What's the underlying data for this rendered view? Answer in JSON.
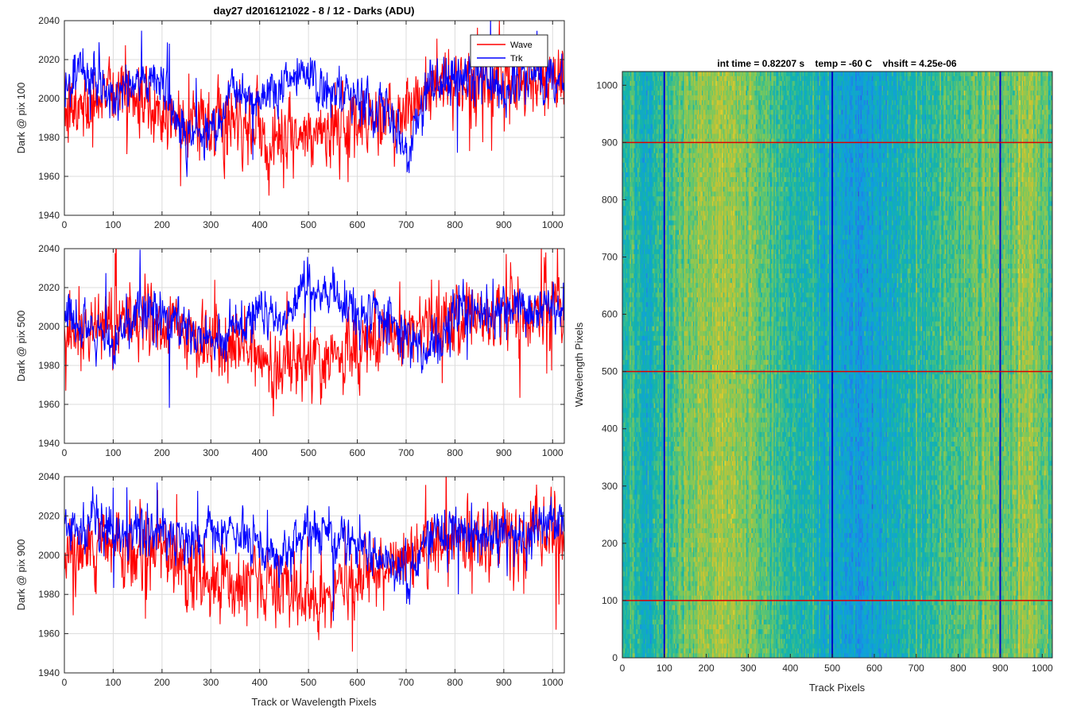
{
  "figure": {
    "title": "day27 d2016121022 - 8 / 12 - Darks (ADU)"
  },
  "chart_data": [
    {
      "type": "line",
      "ylabel": "Dark @ pix 100",
      "xlabel": "",
      "xlim": [
        0,
        1024
      ],
      "ylim": [
        1940,
        2040
      ],
      "xticks": [
        "0",
        "100",
        "200",
        "300",
        "400",
        "500",
        "600",
        "700",
        "800",
        "900",
        "1000"
      ],
      "yticks": [
        "1940",
        "1960",
        "1980",
        "2000",
        "2020",
        "2040"
      ],
      "grid": true,
      "legend": {
        "position": "top-right",
        "entries": [
          "Wave",
          "Trk"
        ]
      },
      "series": [
        {
          "name": "Wave",
          "color": "#ff0000",
          "x": [
            0,
            50,
            100,
            150,
            200,
            250,
            300,
            350,
            400,
            450,
            500,
            550,
            600,
            650,
            700,
            750,
            800,
            850,
            900,
            950,
            1000,
            1024
          ],
          "values": [
            1990,
            1998,
            2008,
            2000,
            1992,
            1990,
            1988,
            1985,
            1982,
            1980,
            1978,
            1984,
            1985,
            1990,
            1993,
            2005,
            2008,
            2007,
            2006,
            2008,
            2010,
            2008
          ]
        },
        {
          "name": "Trk",
          "color": "#0000ff",
          "x": [
            0,
            50,
            100,
            150,
            200,
            250,
            300,
            350,
            400,
            450,
            500,
            550,
            600,
            650,
            700,
            750,
            800,
            850,
            900,
            950,
            1000,
            1024
          ],
          "values": [
            2005,
            2015,
            2000,
            2010,
            2008,
            1980,
            1985,
            2005,
            2000,
            2010,
            2015,
            2000,
            1998,
            1995,
            1975,
            2005,
            2010,
            2010,
            2005,
            2010,
            2012,
            2010
          ]
        }
      ]
    },
    {
      "type": "line",
      "ylabel": "Dark @ pix 500",
      "xlabel": "",
      "xlim": [
        0,
        1024
      ],
      "ylim": [
        1940,
        2040
      ],
      "xticks": [
        "0",
        "100",
        "200",
        "300",
        "400",
        "500",
        "600",
        "700",
        "800",
        "900",
        "1000"
      ],
      "yticks": [
        "1940",
        "1960",
        "1980",
        "2000",
        "2020",
        "2040"
      ],
      "grid": true,
      "series": [
        {
          "name": "Wave",
          "color": "#ff0000",
          "x": [
            0,
            50,
            100,
            150,
            200,
            250,
            300,
            350,
            400,
            450,
            500,
            550,
            600,
            650,
            700,
            750,
            800,
            850,
            900,
            950,
            1000,
            1024
          ],
          "values": [
            1995,
            2000,
            2005,
            2003,
            2000,
            1995,
            1990,
            1988,
            1985,
            1982,
            1978,
            1985,
            1988,
            1993,
            1998,
            2003,
            2005,
            2007,
            2007,
            2008,
            2008,
            2008
          ]
        },
        {
          "name": "Trk",
          "color": "#0000ff",
          "x": [
            0,
            50,
            100,
            150,
            200,
            250,
            300,
            350,
            400,
            450,
            500,
            550,
            600,
            650,
            700,
            750,
            800,
            850,
            900,
            950,
            1000,
            1024
          ],
          "values": [
            2005,
            1995,
            1990,
            2010,
            2005,
            1998,
            1992,
            2000,
            2010,
            2000,
            2025,
            2015,
            2005,
            2008,
            1995,
            1985,
            2010,
            2008,
            2005,
            2008,
            2010,
            2008
          ]
        }
      ]
    },
    {
      "type": "line",
      "ylabel": "Dark @ pix 900",
      "xlabel": "Track or Wavelength Pixels",
      "xlim": [
        0,
        1024
      ],
      "ylim": [
        1940,
        2040
      ],
      "xticks": [
        "0",
        "100",
        "200",
        "300",
        "400",
        "500",
        "600",
        "700",
        "800",
        "900",
        "1000"
      ],
      "yticks": [
        "1940",
        "1960",
        "1980",
        "2000",
        "2020",
        "2040"
      ],
      "grid": true,
      "series": [
        {
          "name": "Wave",
          "color": "#ff0000",
          "x": [
            0,
            50,
            100,
            150,
            200,
            250,
            300,
            350,
            400,
            450,
            500,
            550,
            600,
            650,
            700,
            750,
            800,
            850,
            900,
            950,
            1000,
            1024
          ],
          "values": [
            1995,
            2000,
            2005,
            2005,
            2002,
            1995,
            1990,
            1988,
            1985,
            1982,
            1980,
            1983,
            1985,
            1990,
            1995,
            2003,
            2005,
            2007,
            2008,
            2008,
            2010,
            2008
          ]
        },
        {
          "name": "Trk",
          "color": "#0000ff",
          "x": [
            0,
            50,
            100,
            150,
            200,
            250,
            300,
            350,
            400,
            450,
            500,
            550,
            600,
            650,
            700,
            750,
            800,
            850,
            900,
            950,
            1000,
            1024
          ],
          "values": [
            2010,
            2015,
            2012,
            2012,
            2010,
            2008,
            2010,
            2012,
            2005,
            1998,
            2015,
            2010,
            2005,
            2000,
            1990,
            2008,
            2012,
            2010,
            2010,
            2010,
            2020,
            2018
          ]
        }
      ]
    },
    {
      "type": "heatmap",
      "title": "int time = 0.82207 s    temp = -60 C    vhsift = 4.25e-06",
      "xlabel": "Track Pixels",
      "ylabel": "Wavelength Pixels",
      "xlim": [
        0,
        1024
      ],
      "ylim": [
        0,
        1024
      ],
      "xticks": [
        "0",
        "100",
        "200",
        "300",
        "400",
        "500",
        "600",
        "700",
        "800",
        "900",
        "1000"
      ],
      "yticks": [
        "0",
        "100",
        "200",
        "300",
        "400",
        "500",
        "600",
        "700",
        "800",
        "900",
        "1000"
      ],
      "colormap": "parula",
      "column_profile": {
        "x": [
          0,
          50,
          100,
          150,
          200,
          250,
          300,
          350,
          400,
          450,
          500,
          550,
          600,
          650,
          700,
          750,
          800,
          850,
          900,
          950,
          1000,
          1024
        ],
        "level": [
          0.5,
          0.4,
          0.48,
          0.58,
          0.66,
          0.68,
          0.62,
          0.55,
          0.48,
          0.42,
          0.35,
          0.3,
          0.33,
          0.4,
          0.46,
          0.5,
          0.55,
          0.56,
          0.58,
          0.65,
          0.6,
          0.56
        ]
      },
      "vertical_lines": {
        "color": "#0000cc",
        "x": [
          100,
          500,
          900
        ]
      },
      "horizontal_lines": {
        "color": "#dd0000",
        "y": [
          100,
          500,
          900
        ]
      }
    }
  ]
}
